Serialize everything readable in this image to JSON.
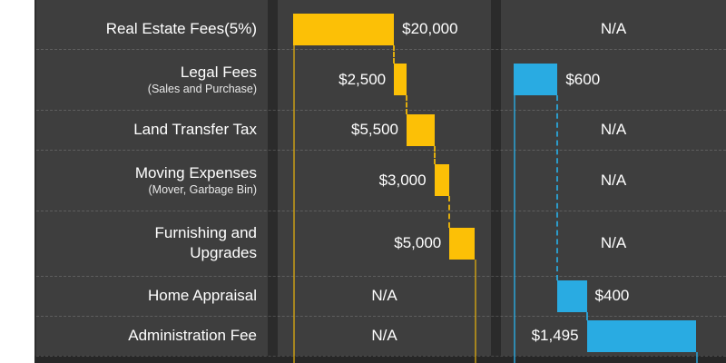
{
  "theme": {
    "panel_background": "#3E3E3E",
    "column_separator": "#2B2B2B",
    "bottom_band": "#272727",
    "row_separator_dash": "rgba(255,255,255,0.17)",
    "text_color": "#FFFFFF",
    "left_margin": "#FFFFFF"
  },
  "chart_data": {
    "type": "bar",
    "subtype": "waterfall",
    "orientation": "horizontal",
    "title": "",
    "grid": "dashed-row-separators",
    "na_text": "N/A",
    "categories": [
      "Real Estate Fees(5%)",
      "Legal Fees",
      "Land Transfer Tax",
      "Moving Expenses",
      "Furnishing and\nUpgrades",
      "Home Appraisal",
      "Administration Fee"
    ],
    "subcategories": [
      null,
      "(Sales and Purchase)",
      null,
      "(Mover, Garbage Bin)",
      null,
      null,
      null
    ],
    "series": [
      {
        "id": "yellow",
        "color": "#FCC006",
        "line_color": "rgba(252,192,6,0.55)",
        "connector_color": "rgba(252,192,6,0.85)",
        "values": [
          20000,
          2500,
          5500,
          3000,
          5000,
          null,
          null
        ],
        "labels": [
          "$20,000",
          "$2,500",
          "$5,500",
          "$3,000",
          "$5,000",
          "N/A",
          "N/A"
        ],
        "label_sides": [
          "right",
          "left",
          "left",
          "left",
          "left",
          "center",
          "center"
        ],
        "cumulative_total": 36000
      },
      {
        "id": "blue",
        "color": "#29ABE2",
        "line_color": "rgba(41,171,226,0.70)",
        "connector_color": "rgba(41,171,226,0.85)",
        "values": [
          null,
          600,
          null,
          null,
          null,
          400,
          1495
        ],
        "labels": [
          "N/A",
          "$600",
          "N/A",
          "N/A",
          "N/A",
          "$400",
          "$1,495"
        ],
        "label_sides": [
          "center",
          "right",
          "center",
          "center",
          "center",
          "right",
          "left"
        ],
        "cumulative_total": 2495
      }
    ]
  }
}
